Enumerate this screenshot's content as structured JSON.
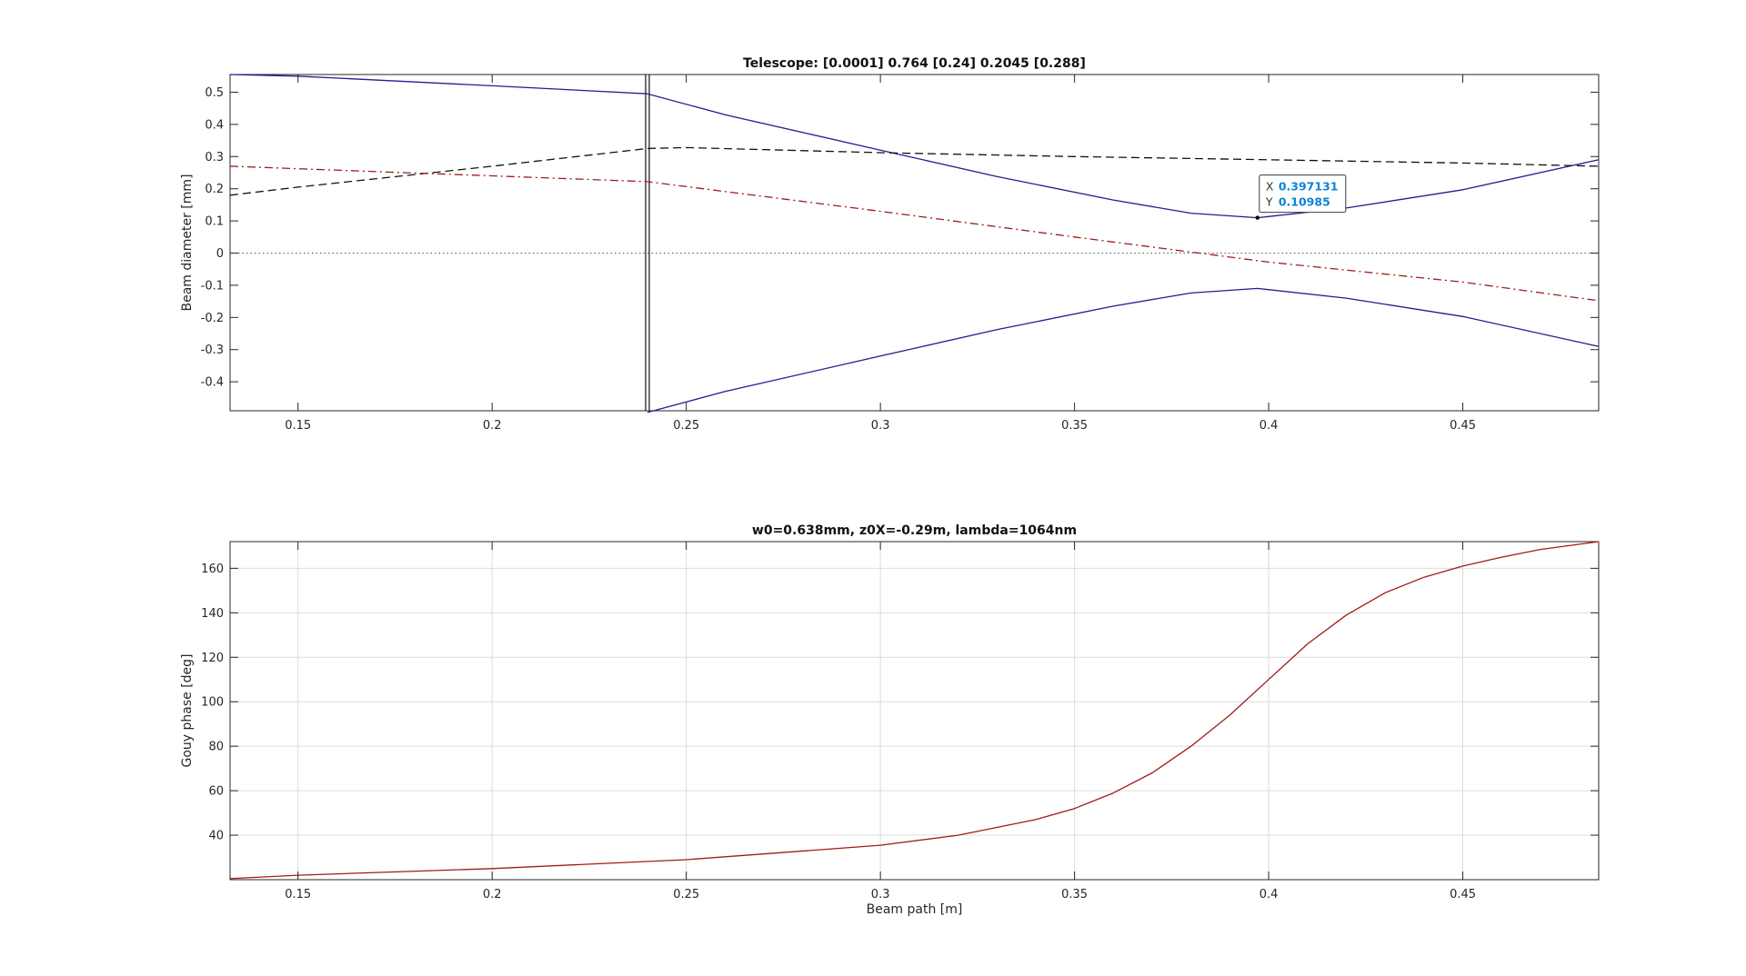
{
  "colors": {
    "background": "#ffffff",
    "axis": "#262626",
    "grid": "#dcdcdc",
    "beam": "#1f1f8f",
    "beam_dashed": "#111111",
    "beam_dashdot": "#a31a1a",
    "gouy": "#a31a1a",
    "datatip_value": "#0a84d6"
  },
  "chart_data": [
    {
      "type": "line",
      "title": "Telescope: [0.0001] 0.764 [0.24] 0.2045 [0.288]",
      "xlabel": "",
      "ylabel": "Beam diameter [mm]",
      "xlim": [
        0.1325,
        0.485
      ],
      "ylim": [
        -0.49,
        0.555
      ],
      "xticks": [
        0.15,
        0.2,
        0.25,
        0.3,
        0.35,
        0.4,
        0.45
      ],
      "xticklabels": [
        "0.15",
        "0.2",
        "0.25",
        "0.3",
        "0.35",
        "0.4",
        "0.45"
      ],
      "yticks": [
        -0.4,
        -0.3,
        -0.2,
        -0.1,
        0,
        0.1,
        0.2,
        0.3,
        0.4,
        0.5
      ],
      "yticklabels": [
        "-0.4",
        "-0.3",
        "-0.2",
        "-0.1",
        "0",
        "0.1",
        "0.2",
        "0.3",
        "0.4",
        "0.5"
      ],
      "grid": false,
      "zero_line": 0,
      "element_line_x": 0.24,
      "series": [
        {
          "style": "solid",
          "color": "#1f1f8f",
          "x": [
            0.1325,
            0.15,
            0.2,
            0.24,
            0.26,
            0.3,
            0.33,
            0.36,
            0.38,
            0.397131,
            0.42,
            0.45,
            0.485
          ],
          "y": [
            0.555,
            0.55,
            0.52,
            0.495,
            0.43,
            0.32,
            0.238,
            0.165,
            0.124,
            0.10985,
            0.14,
            0.197,
            0.29
          ]
        },
        {
          "style": "solid",
          "color": "#1f1f8f",
          "x": [
            0.24,
            0.26,
            0.3,
            0.33,
            0.36,
            0.38,
            0.397131,
            0.42,
            0.45,
            0.485
          ],
          "y": [
            -0.495,
            -0.43,
            -0.32,
            -0.238,
            -0.165,
            -0.124,
            -0.10985,
            -0.14,
            -0.197,
            -0.29
          ]
        },
        {
          "style": "dashed",
          "color": "#111111",
          "x": [
            0.1325,
            0.15,
            0.2,
            0.24,
            0.25,
            0.3,
            0.35,
            0.4,
            0.45,
            0.485
          ],
          "y": [
            0.18,
            0.205,
            0.27,
            0.325,
            0.328,
            0.312,
            0.3,
            0.29,
            0.28,
            0.27
          ]
        },
        {
          "style": "dashdot",
          "color": "#a31a1a",
          "x": [
            0.1325,
            0.15,
            0.2,
            0.24,
            0.3,
            0.35,
            0.4,
            0.45,
            0.485
          ],
          "y": [
            0.27,
            0.262,
            0.24,
            0.222,
            0.13,
            0.05,
            -0.028,
            -0.09,
            -0.148
          ]
        }
      ],
      "datatip": {
        "x": 0.397131,
        "y": 0.10985,
        "x_label": "X",
        "x_value": "0.397131",
        "y_label": "Y",
        "y_value": "0.10985"
      }
    },
    {
      "type": "line",
      "title": "w0=0.638mm, z0X=-0.29m, lambda=1064nm",
      "xlabel": "Beam path [m]",
      "ylabel": "Gouy phase [deg]",
      "xlim": [
        0.1325,
        0.485
      ],
      "ylim": [
        20,
        172
      ],
      "xticks": [
        0.15,
        0.2,
        0.25,
        0.3,
        0.35,
        0.4,
        0.45
      ],
      "xticklabels": [
        "0.15",
        "0.2",
        "0.25",
        "0.3",
        "0.35",
        "0.4",
        "0.45"
      ],
      "yticks": [
        40,
        60,
        80,
        100,
        120,
        140,
        160
      ],
      "yticklabels": [
        "40",
        "60",
        "80",
        "100",
        "120",
        "140",
        "160"
      ],
      "grid": true,
      "series": [
        {
          "style": "solid",
          "color": "#a31a1a",
          "x": [
            0.1325,
            0.15,
            0.2,
            0.25,
            0.3,
            0.32,
            0.34,
            0.35,
            0.36,
            0.37,
            0.38,
            0.39,
            0.4,
            0.41,
            0.42,
            0.43,
            0.44,
            0.45,
            0.46,
            0.47,
            0.485
          ],
          "y": [
            20.5,
            22,
            25,
            29,
            35.5,
            40,
            47,
            52,
            59,
            68,
            80,
            94,
            110,
            126,
            139,
            149,
            156,
            161,
            165,
            168.5,
            172
          ]
        }
      ]
    }
  ]
}
